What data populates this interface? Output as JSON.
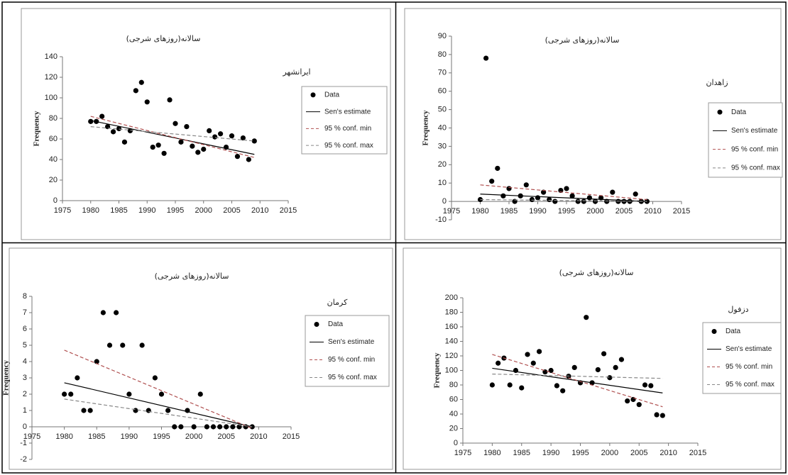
{
  "chart_data": [
    {
      "type": "scatter",
      "title": "سالانه(روزهای شرجی)",
      "subtitle": "ایرانشهر",
      "y_label": "Frequency",
      "xlim": [
        1975,
        2015
      ],
      "xticks": [
        1975,
        1980,
        1985,
        1990,
        1995,
        2000,
        2005,
        2010,
        2015
      ],
      "ylim": [
        0,
        140
      ],
      "yticks": [
        0,
        20,
        40,
        60,
        80,
        100,
        120,
        140
      ],
      "x": [
        1980,
        1981,
        1982,
        1983,
        1984,
        1985,
        1986,
        1987,
        1988,
        1989,
        1990,
        1991,
        1992,
        1993,
        1994,
        1995,
        1996,
        1997,
        1998,
        1999,
        2000,
        2001,
        2002,
        2003,
        2004,
        2005,
        2006,
        2007,
        2008,
        2009
      ],
      "series": [
        {
          "name": "Data",
          "color": "#000000",
          "values": [
            77,
            77,
            82,
            72,
            67,
            70,
            57,
            68,
            107,
            115,
            96,
            52,
            54,
            46,
            98,
            75,
            57,
            72,
            53,
            47,
            50,
            68,
            62,
            65,
            52,
            63,
            43,
            61,
            40,
            58
          ]
        },
        {
          "name": "Sen's estimate",
          "color": "#000000",
          "style": "solid",
          "x": [
            1980,
            2009
          ],
          "values": [
            78,
            45
          ]
        },
        {
          "name": "95 % conf. min",
          "color": "#b05050",
          "style": "dashed",
          "x": [
            1980,
            2009
          ],
          "values": [
            82,
            42
          ]
        },
        {
          "name": "95 % conf. max",
          "color": "#888888",
          "style": "dashed",
          "x": [
            1980,
            2009
          ],
          "values": [
            72,
            58
          ]
        }
      ]
    },
    {
      "type": "scatter",
      "title": "سالانه(روزهای شرجی)",
      "subtitle": "زاهدان",
      "y_label": "Frequency",
      "xlim": [
        1975,
        2015
      ],
      "xticks": [
        1975,
        1980,
        1985,
        1990,
        1995,
        2000,
        2005,
        2010,
        2015
      ],
      "ylim": [
        -10,
        90
      ],
      "yticks": [
        -10,
        0,
        10,
        20,
        30,
        40,
        50,
        60,
        70,
        80,
        90
      ],
      "x": [
        1980,
        1981,
        1982,
        1983,
        1984,
        1985,
        1986,
        1987,
        1988,
        1989,
        1990,
        1991,
        1992,
        1993,
        1994,
        1995,
        1996,
        1997,
        1998,
        1999,
        2000,
        2001,
        2002,
        2003,
        2004,
        2005,
        2006,
        2007,
        2008,
        2009
      ],
      "series": [
        {
          "name": "Data",
          "color": "#000000",
          "values": [
            1,
            78,
            11,
            18,
            3,
            7,
            0,
            3,
            9,
            1,
            2,
            5,
            1,
            0,
            6,
            7,
            3,
            0,
            0,
            2,
            0,
            2,
            0,
            5,
            0,
            0,
            0,
            4,
            0,
            0
          ]
        },
        {
          "name": "Sen's estimate",
          "color": "#000000",
          "style": "solid",
          "x": [
            1980,
            2009
          ],
          "values": [
            4,
            0
          ]
        },
        {
          "name": "95 % conf. min",
          "color": "#b05050",
          "style": "dashed",
          "x": [
            1980,
            2009
          ],
          "values": [
            9,
            1
          ]
        },
        {
          "name": "95 % conf. max",
          "color": "#888888",
          "style": "dashed",
          "x": [
            1980,
            2009
          ],
          "values": [
            1,
            0
          ]
        }
      ]
    },
    {
      "type": "scatter",
      "title": "سالانه(روزهای شرجی)",
      "subtitle": "کرمان",
      "y_label": "Frequency",
      "xlim": [
        1975,
        2015
      ],
      "xticks": [
        1975,
        1980,
        1985,
        1990,
        1995,
        2000,
        2005,
        2010,
        2015
      ],
      "ylim": [
        -2,
        8
      ],
      "yticks": [
        -2,
        -1,
        0,
        1,
        2,
        3,
        4,
        5,
        6,
        7,
        8
      ],
      "x": [
        1980,
        1981,
        1982,
        1983,
        1984,
        1985,
        1986,
        1987,
        1988,
        1989,
        1990,
        1991,
        1992,
        1993,
        1994,
        1995,
        1996,
        1997,
        1998,
        1999,
        2000,
        2001,
        2002,
        2003,
        2004,
        2005,
        2006,
        2007,
        2008,
        2009
      ],
      "series": [
        {
          "name": "Data",
          "color": "#000000",
          "values": [
            2,
            2,
            3,
            1,
            1,
            4,
            7,
            5,
            7,
            5,
            2,
            1,
            5,
            1,
            3,
            2,
            1,
            0,
            0,
            1,
            0,
            2,
            0,
            0,
            0,
            0,
            0,
            0,
            0,
            0
          ]
        },
        {
          "name": "Sen's estimate",
          "color": "#000000",
          "style": "solid",
          "x": [
            1980,
            2009
          ],
          "values": [
            2.7,
            0
          ]
        },
        {
          "name": "95 % conf. min",
          "color": "#b05050",
          "style": "dashed",
          "x": [
            1980,
            2009
          ],
          "values": [
            4.7,
            -0.1
          ]
        },
        {
          "name": "95 % conf. max",
          "color": "#888888",
          "style": "dashed",
          "x": [
            1980,
            2009
          ],
          "values": [
            1.7,
            0
          ]
        }
      ]
    },
    {
      "type": "scatter",
      "title": "سالانه(روزهای شرجی)",
      "subtitle": "دزفول",
      "y_label": "Frequency",
      "xlim": [
        1975,
        2015
      ],
      "xticks": [
        1975,
        1980,
        1985,
        1990,
        1995,
        2000,
        2005,
        2010,
        2015
      ],
      "ylim": [
        0,
        200
      ],
      "yticks": [
        0,
        20,
        40,
        60,
        80,
        100,
        120,
        140,
        160,
        180,
        200
      ],
      "x": [
        1980,
        1981,
        1982,
        1983,
        1984,
        1985,
        1986,
        1987,
        1988,
        1989,
        1990,
        1991,
        1992,
        1993,
        1994,
        1995,
        1996,
        1997,
        1998,
        1999,
        2000,
        2001,
        2002,
        2003,
        2004,
        2005,
        2006,
        2007,
        2008,
        2009
      ],
      "series": [
        {
          "name": "Data",
          "color": "#000000",
          "values": [
            80,
            110,
            117,
            80,
            100,
            76,
            122,
            110,
            126,
            98,
            100,
            79,
            72,
            92,
            104,
            83,
            173,
            83,
            101,
            123,
            90,
            104,
            115,
            58,
            60,
            53,
            80,
            79,
            39,
            38
          ]
        },
        {
          "name": "Sen's estimate",
          "color": "#000000",
          "style": "solid",
          "x": [
            1980,
            2009
          ],
          "values": [
            103,
            69
          ]
        },
        {
          "name": "95 % conf. min",
          "color": "#b05050",
          "style": "dashed",
          "x": [
            1980,
            2009
          ],
          "values": [
            122,
            50
          ]
        },
        {
          "name": "95 % conf. max",
          "color": "#888888",
          "style": "dashed",
          "x": [
            1980,
            2009
          ],
          "values": [
            95,
            89
          ]
        }
      ]
    }
  ]
}
